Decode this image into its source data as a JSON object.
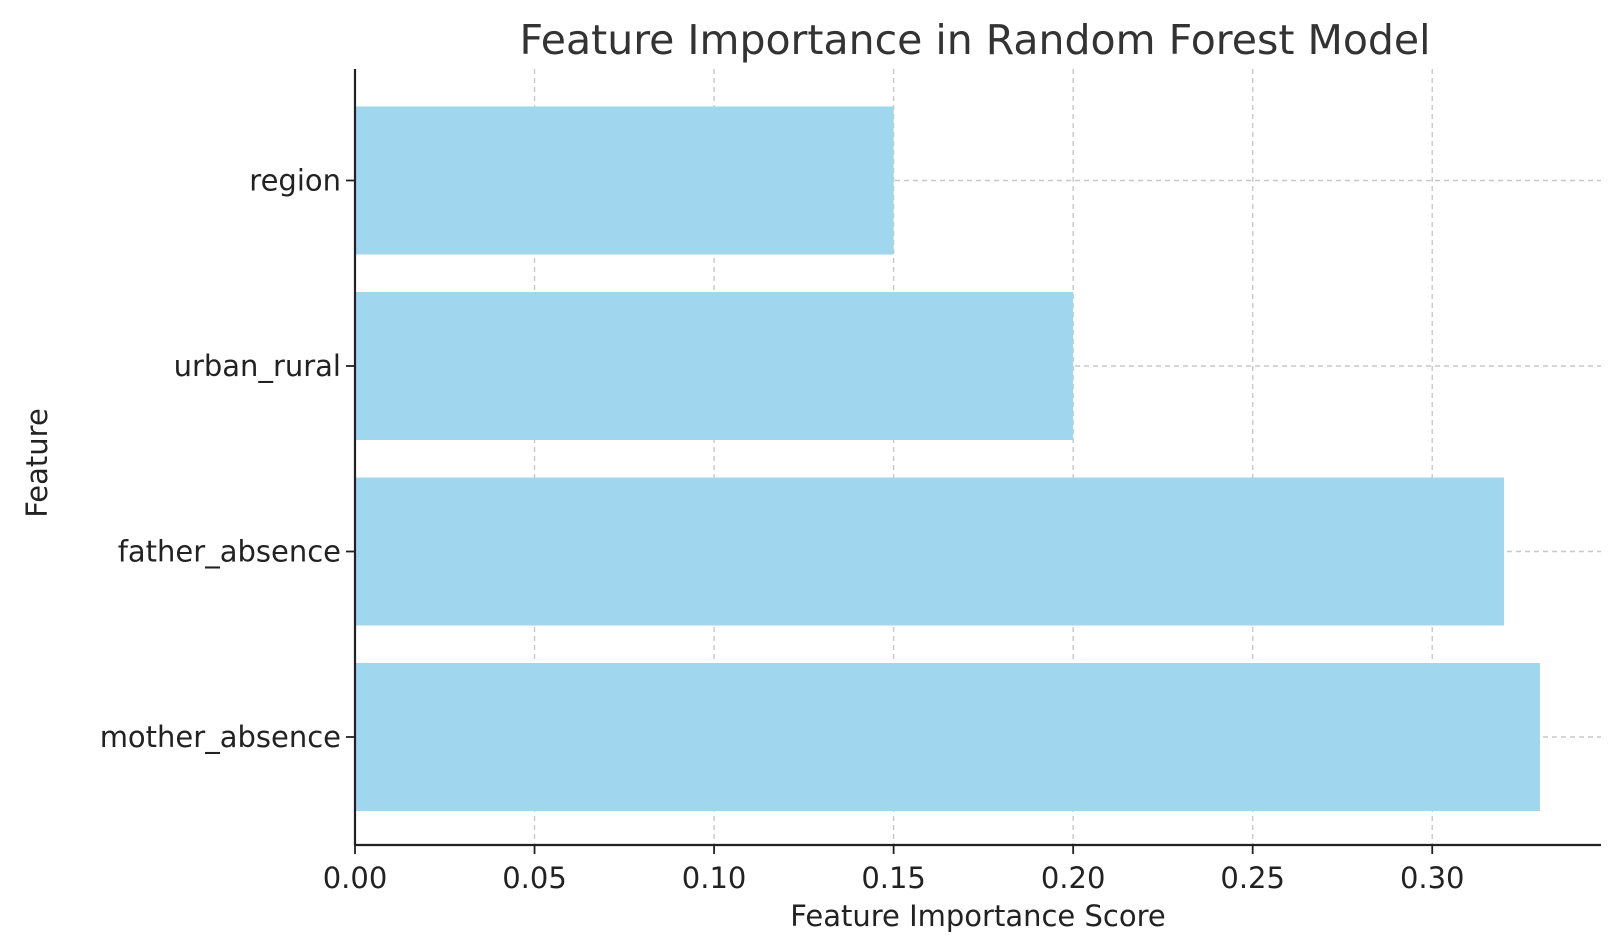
{
  "chart_data": {
    "type": "bar",
    "orientation": "horizontal",
    "title": "Feature Importance in Random Forest Model",
    "xlabel": "Feature Importance Score",
    "ylabel": "Feature",
    "categories": [
      "mother_absence",
      "father_absence",
      "urban_rural",
      "region"
    ],
    "values": [
      0.33,
      0.32,
      0.2,
      0.15
    ],
    "xlim": [
      0,
      0.347
    ],
    "xticks": [
      0.0,
      0.05,
      0.1,
      0.15,
      0.2,
      0.25,
      0.3
    ],
    "xtick_labels": [
      "0.00",
      "0.05",
      "0.10",
      "0.15",
      "0.20",
      "0.25",
      "0.30"
    ],
    "grid": true,
    "bar_color": "#a0d6ee"
  }
}
